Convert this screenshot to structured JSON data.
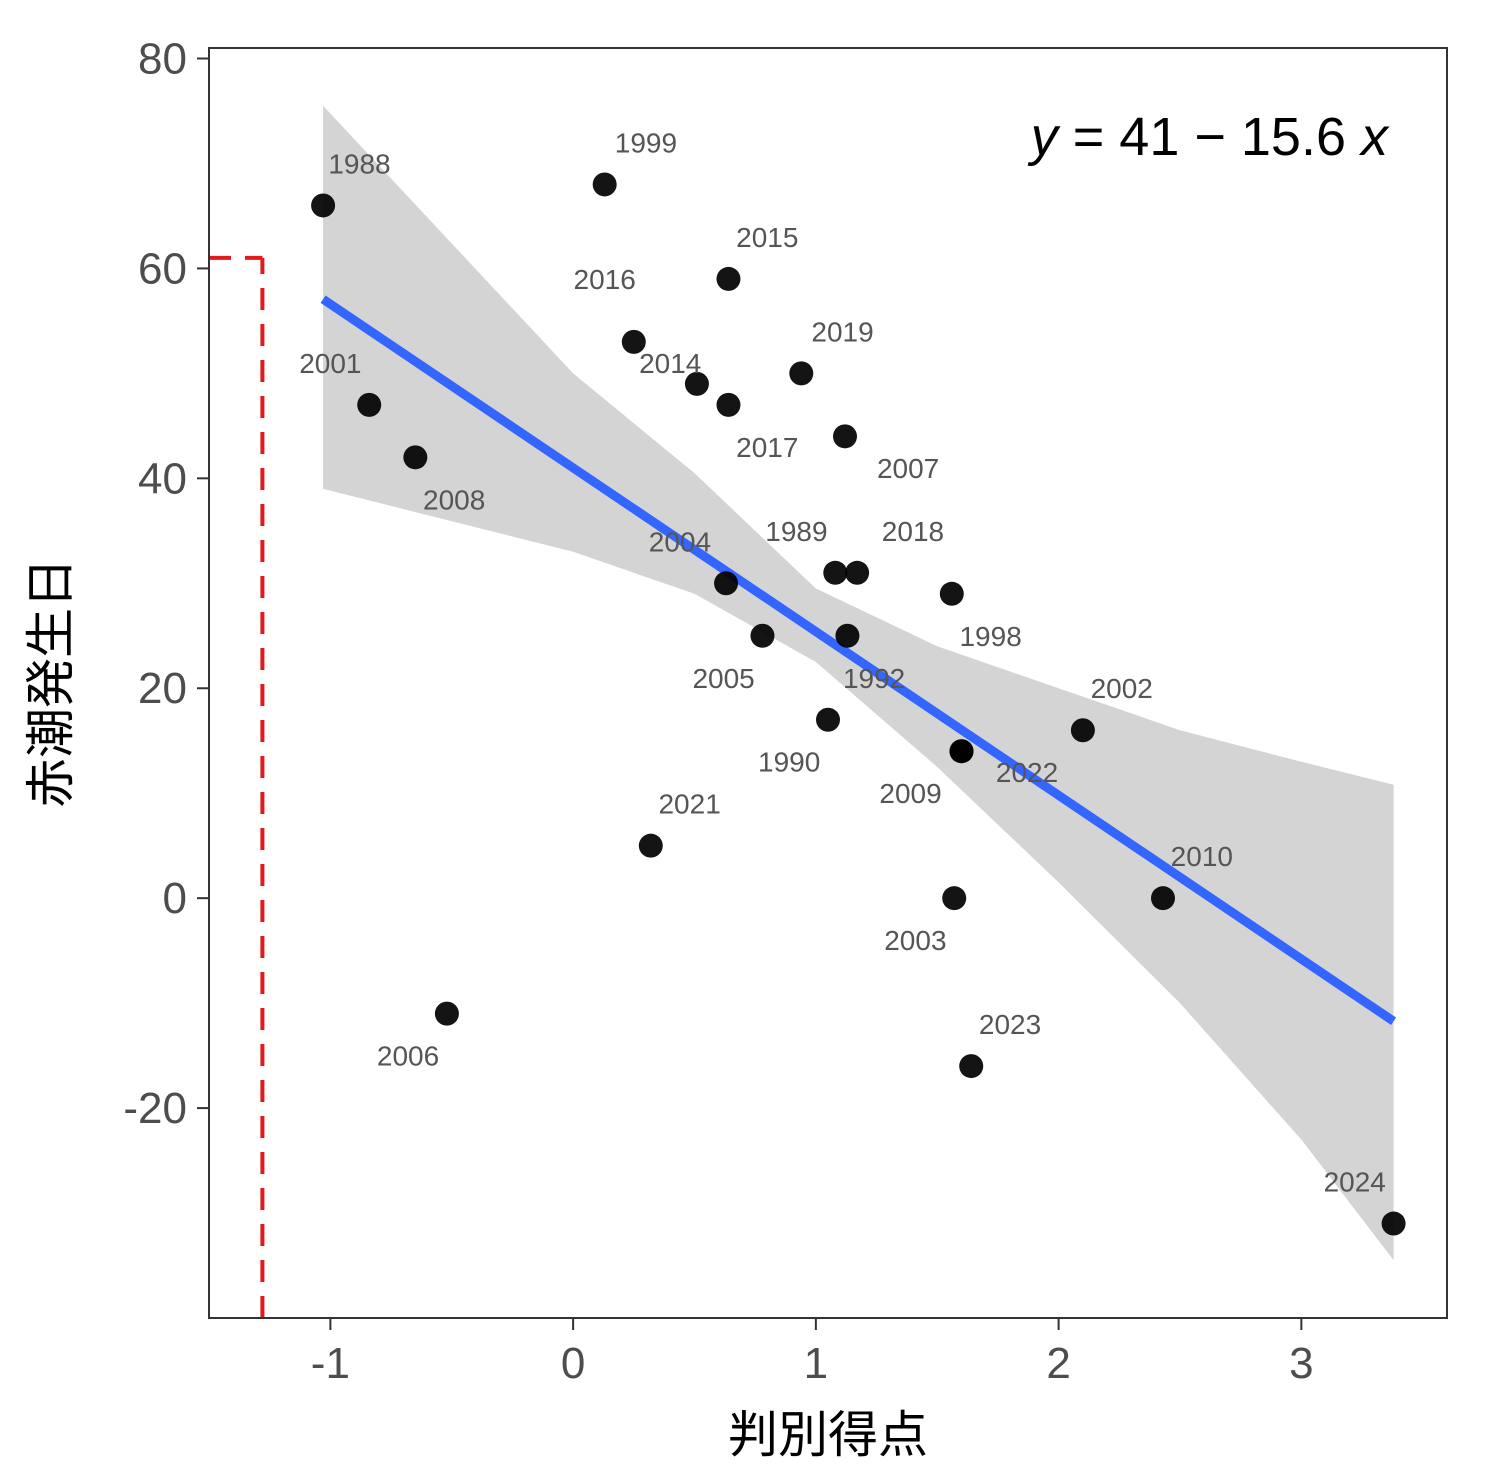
{
  "chart_data": {
    "type": "scatter",
    "xlabel": "判別得点",
    "ylabel": "赤潮発生日",
    "xlim": [
      -1.5,
      3.6
    ],
    "ylim": [
      -40,
      81
    ],
    "x_ticks": [
      -1,
      0,
      1,
      2,
      3
    ],
    "y_ticks": [
      -20,
      0,
      20,
      40,
      60,
      80
    ],
    "x_tick_labels": [
      "-1",
      "0",
      "1",
      "2",
      "3"
    ],
    "y_tick_labels": [
      "-20",
      "0",
      "20",
      "40",
      "60",
      "80"
    ],
    "grid": false,
    "equation": {
      "y": "y",
      "mid": " = 41 − 15.6 ",
      "x": "x"
    },
    "regression": {
      "intercept": 41,
      "slope": -15.6,
      "x_range": [
        -1.03,
        3.38
      ]
    },
    "confidence_band": [
      {
        "x": -1.03,
        "lo": 39.0,
        "hi": 75.5
      },
      {
        "x": 0.0,
        "lo": 33.0,
        "hi": 50.0
      },
      {
        "x": 0.5,
        "lo": 29.0,
        "hi": 40.5
      },
      {
        "x": 1.0,
        "lo": 22.5,
        "hi": 29.5
      },
      {
        "x": 1.5,
        "lo": 12.5,
        "hi": 24.0
      },
      {
        "x": 2.0,
        "lo": 1.5,
        "hi": 20.0
      },
      {
        "x": 2.5,
        "lo": -10.0,
        "hi": 16.0
      },
      {
        "x": 3.0,
        "lo": -23.0,
        "hi": 13.0
      },
      {
        "x": 3.38,
        "lo": -34.5,
        "hi": 10.8
      }
    ],
    "reference_line": {
      "x": -1.28,
      "y": 61,
      "color": "#e31a1c"
    },
    "colors": {
      "points": "#000000",
      "fit_line": "#3366ff",
      "band": "#d4d4d4",
      "reference": "#e31a1c"
    },
    "points": [
      {
        "year": "1988",
        "x": -1.03,
        "y": 66,
        "lx": 0.15,
        "ly": 4
      },
      {
        "year": "1999",
        "x": 0.13,
        "y": 68,
        "lx": 0.17,
        "ly": 4
      },
      {
        "year": "2015",
        "x": 0.64,
        "y": 59,
        "lx": 0.16,
        "ly": 4
      },
      {
        "year": "2016",
        "x": 0.25,
        "y": 53,
        "lx": -0.12,
        "ly": 6
      },
      {
        "year": "2014",
        "x": 0.51,
        "y": 49,
        "lx": -0.11,
        "ly": 2
      },
      {
        "year": "2019",
        "x": 0.94,
        "y": 50,
        "lx": 0.17,
        "ly": 4
      },
      {
        "year": "2001",
        "x": -0.84,
        "y": 47,
        "lx": -0.16,
        "ly": 4
      },
      {
        "year": "2017",
        "x": 0.64,
        "y": 47,
        "lx": 0.16,
        "ly": -4
      },
      {
        "year": "2007",
        "x": 1.12,
        "y": 44,
        "lx": 0.26,
        "ly": -3
      },
      {
        "year": "2008",
        "x": -0.65,
        "y": 42,
        "lx": 0.16,
        "ly": -4
      },
      {
        "year": "2004",
        "x": 0.63,
        "y": 30,
        "lx": -0.19,
        "ly": 4
      },
      {
        "year": "1989",
        "x": 1.08,
        "y": 31,
        "lx": -0.16,
        "ly": 4
      },
      {
        "year": "2018",
        "x": 1.17,
        "y": 31,
        "lx": 0.23,
        "ly": 4
      },
      {
        "year": "1998",
        "x": 1.56,
        "y": 29,
        "lx": 0.16,
        "ly": -4
      },
      {
        "year": "2005",
        "x": 0.78,
        "y": 25,
        "lx": -0.16,
        "ly": -4
      },
      {
        "year": "1992",
        "x": 1.13,
        "y": 25,
        "lx": 0.11,
        "ly": -4
      },
      {
        "year": "1990",
        "x": 1.05,
        "y": 17,
        "lx": -0.16,
        "ly": -4
      },
      {
        "year": "2002",
        "x": 2.1,
        "y": 16,
        "lx": 0.16,
        "ly": 4
      },
      {
        "year": "2009",
        "x": 1.6,
        "y": 14,
        "lx": -0.21,
        "ly": -4
      },
      {
        "year": "2022",
        "x": 1.6,
        "y": 14,
        "lx": 0.27,
        "ly": -2
      },
      {
        "year": "2021",
        "x": 0.32,
        "y": 5,
        "lx": 0.16,
        "ly": 4
      },
      {
        "year": "2003",
        "x": 1.57,
        "y": 0,
        "lx": -0.16,
        "ly": -4
      },
      {
        "year": "2010",
        "x": 2.43,
        "y": 0,
        "lx": 0.16,
        "ly": 4
      },
      {
        "year": "2006",
        "x": -0.52,
        "y": -11,
        "lx": -0.16,
        "ly": -4
      },
      {
        "year": "2023",
        "x": 1.64,
        "y": -16,
        "lx": 0.16,
        "ly": 4
      },
      {
        "year": "2024",
        "x": 3.38,
        "y": -31,
        "lx": -0.16,
        "ly": 4
      }
    ]
  }
}
